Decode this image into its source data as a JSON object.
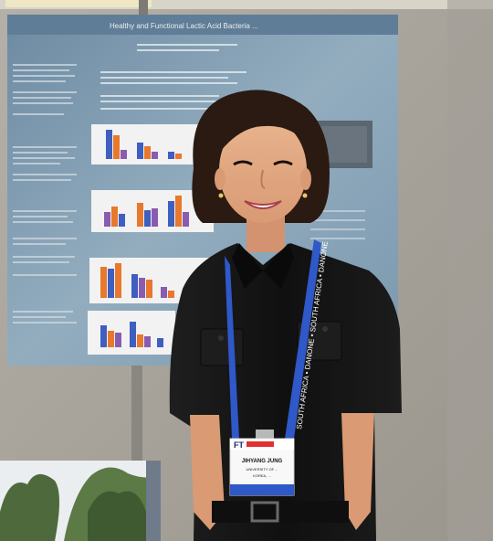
{
  "photo": {
    "subject": "person-at-poster-session",
    "badge": {
      "header": "FT",
      "name": "JIHYANG JUNG",
      "affiliation": "UNIVERSITY OF ...",
      "country": "KOREA, ..."
    },
    "lanyard_text": "SOUTH AFRICA • DANONE • SOUTH AFRICA • DANONE",
    "poster_title": "Healthy and Functional Lactic Acid Bacteria ...",
    "colors": {
      "wall": "#a9a59d",
      "poster": "#8aa4b8",
      "poster_chart_orange": "#e8782c",
      "poster_chart_blue": "#3e5ec0",
      "poster_chart_purple": "#8a5cb0",
      "lanyard": "#2f58c8",
      "shirt": "#151515"
    }
  }
}
